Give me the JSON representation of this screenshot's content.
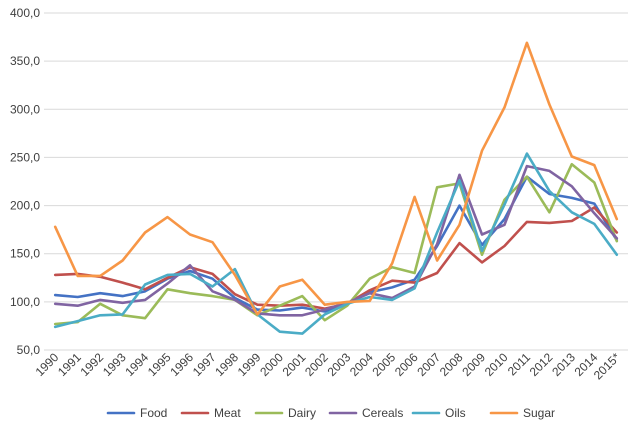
{
  "chart_data": {
    "type": "line",
    "title": "",
    "xlabel": "",
    "ylabel": "",
    "ylim": [
      50,
      400
    ],
    "yticks": [
      50,
      100,
      150,
      200,
      250,
      300,
      350,
      400
    ],
    "ytick_labels": [
      "50,0",
      "100,0",
      "150,0",
      "200,0",
      "250,0",
      "300,0",
      "350,0",
      "400,0"
    ],
    "grid": "horizontal",
    "legend_position": "bottom",
    "categories": [
      "1990",
      "1991",
      "1992",
      "1993",
      "1994",
      "1995",
      "1996",
      "1997",
      "1998",
      "1999",
      "2000",
      "2001",
      "2002",
      "2003",
      "2004",
      "2005",
      "2006",
      "2007",
      "2008",
      "2009",
      "2010",
      "2011",
      "2012",
      "2013",
      "2014",
      "2015*"
    ],
    "series": [
      {
        "name": "Food",
        "color": "#4472c4",
        "values": [
          107,
          105,
          109,
          106,
          111,
          124,
          132,
          124,
          104,
          92,
          91,
          94,
          90,
          98,
          110,
          115,
          123,
          158,
          200,
          159,
          186,
          230,
          212,
          208,
          202,
          164
        ]
      },
      {
        "name": "Meat",
        "color": "#c0504d",
        "values": [
          128,
          129,
          126,
          120,
          113,
          125,
          136,
          129,
          108,
          97,
          96,
          97,
          93,
          98,
          112,
          122,
          120,
          130,
          161,
          141,
          158,
          183,
          182,
          184,
          198,
          172
        ]
      },
      {
        "name": "Dairy",
        "color": "#9bbb59",
        "values": [
          77,
          79,
          98,
          86,
          83,
          113,
          109,
          106,
          102,
          86,
          96,
          106,
          81,
          96,
          124,
          136,
          130,
          219,
          223,
          149,
          206,
          230,
          193,
          243,
          224,
          163
        ]
      },
      {
        "name": "Cereals",
        "color": "#8064a2",
        "values": [
          98,
          96,
          102,
          99,
          102,
          119,
          138,
          111,
          102,
          88,
          86,
          86,
          92,
          99,
          109,
          104,
          116,
          160,
          232,
          170,
          180,
          241,
          236,
          220,
          192,
          166
        ]
      },
      {
        "name": "Oils",
        "color": "#4bacc6",
        "values": [
          74,
          80,
          86,
          87,
          118,
          128,
          129,
          116,
          134,
          87,
          69,
          67,
          87,
          98,
          105,
          102,
          114,
          172,
          226,
          153,
          201,
          254,
          215,
          193,
          181,
          149
        ]
      },
      {
        "name": "Sugar",
        "color": "#f79646",
        "values": [
          178,
          127,
          127,
          143,
          172,
          188,
          170,
          162,
          128,
          87,
          116,
          123,
          97,
          100,
          101,
          140,
          209,
          143,
          180,
          257,
          302,
          369,
          305,
          251,
          242,
          186
        ]
      }
    ]
  }
}
